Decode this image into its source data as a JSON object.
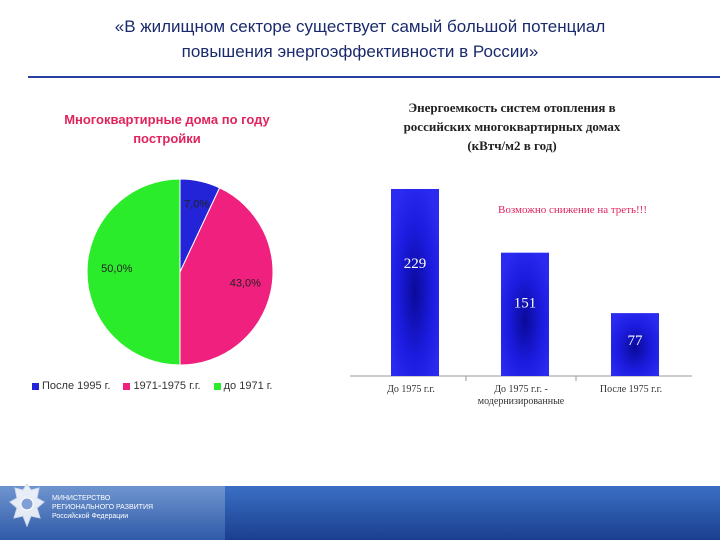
{
  "slide": {
    "title_line1": "«В жилищном секторе существует самый большой потенциал",
    "title_line2": "повышения энергоэффективности в России»",
    "ministry_line1": "МИНИСТЕРСТВО",
    "ministry_line2": "РЕГИОНАЛЬНОГО РАЗВИТИЯ",
    "ministry_line3": "Российской Федерации"
  },
  "chart_data": [
    {
      "type": "pie",
      "title_line1": "Многоквартирные дома по году",
      "title_line2": "постройки",
      "categories": [
        "После 1995 г.",
        "1971-1975 г.г.",
        "до 1971 г."
      ],
      "values": [
        7.0,
        43.0,
        50.0
      ],
      "value_labels": [
        "7,0%",
        "43,0%",
        "50,0%"
      ],
      "colors": [
        "#2323d8",
        "#f0207e",
        "#2bec2b"
      ],
      "legend": "bottom"
    },
    {
      "type": "bar",
      "title_line1": "Энергоемкость систем отопления в",
      "title_line2": "российских многоквартирных домах",
      "title_line3": "(кВтч/м2 в год)",
      "categories": [
        "До 1975 г.г.",
        "До 1975 г.г. - модернизированные",
        "После 1975 г.г."
      ],
      "category_lines": [
        [
          "До 1975 г.г."
        ],
        [
          "До 1975 г.г. -",
          "модернизированные"
        ],
        [
          "После 1975 г.г."
        ]
      ],
      "values": [
        229,
        151,
        77
      ],
      "value_labels": [
        "229",
        "151",
        "77"
      ],
      "ylim": [
        0,
        240
      ],
      "color": "#1c1ce0",
      "annotation": "Возможно снижение на треть!!!"
    }
  ]
}
